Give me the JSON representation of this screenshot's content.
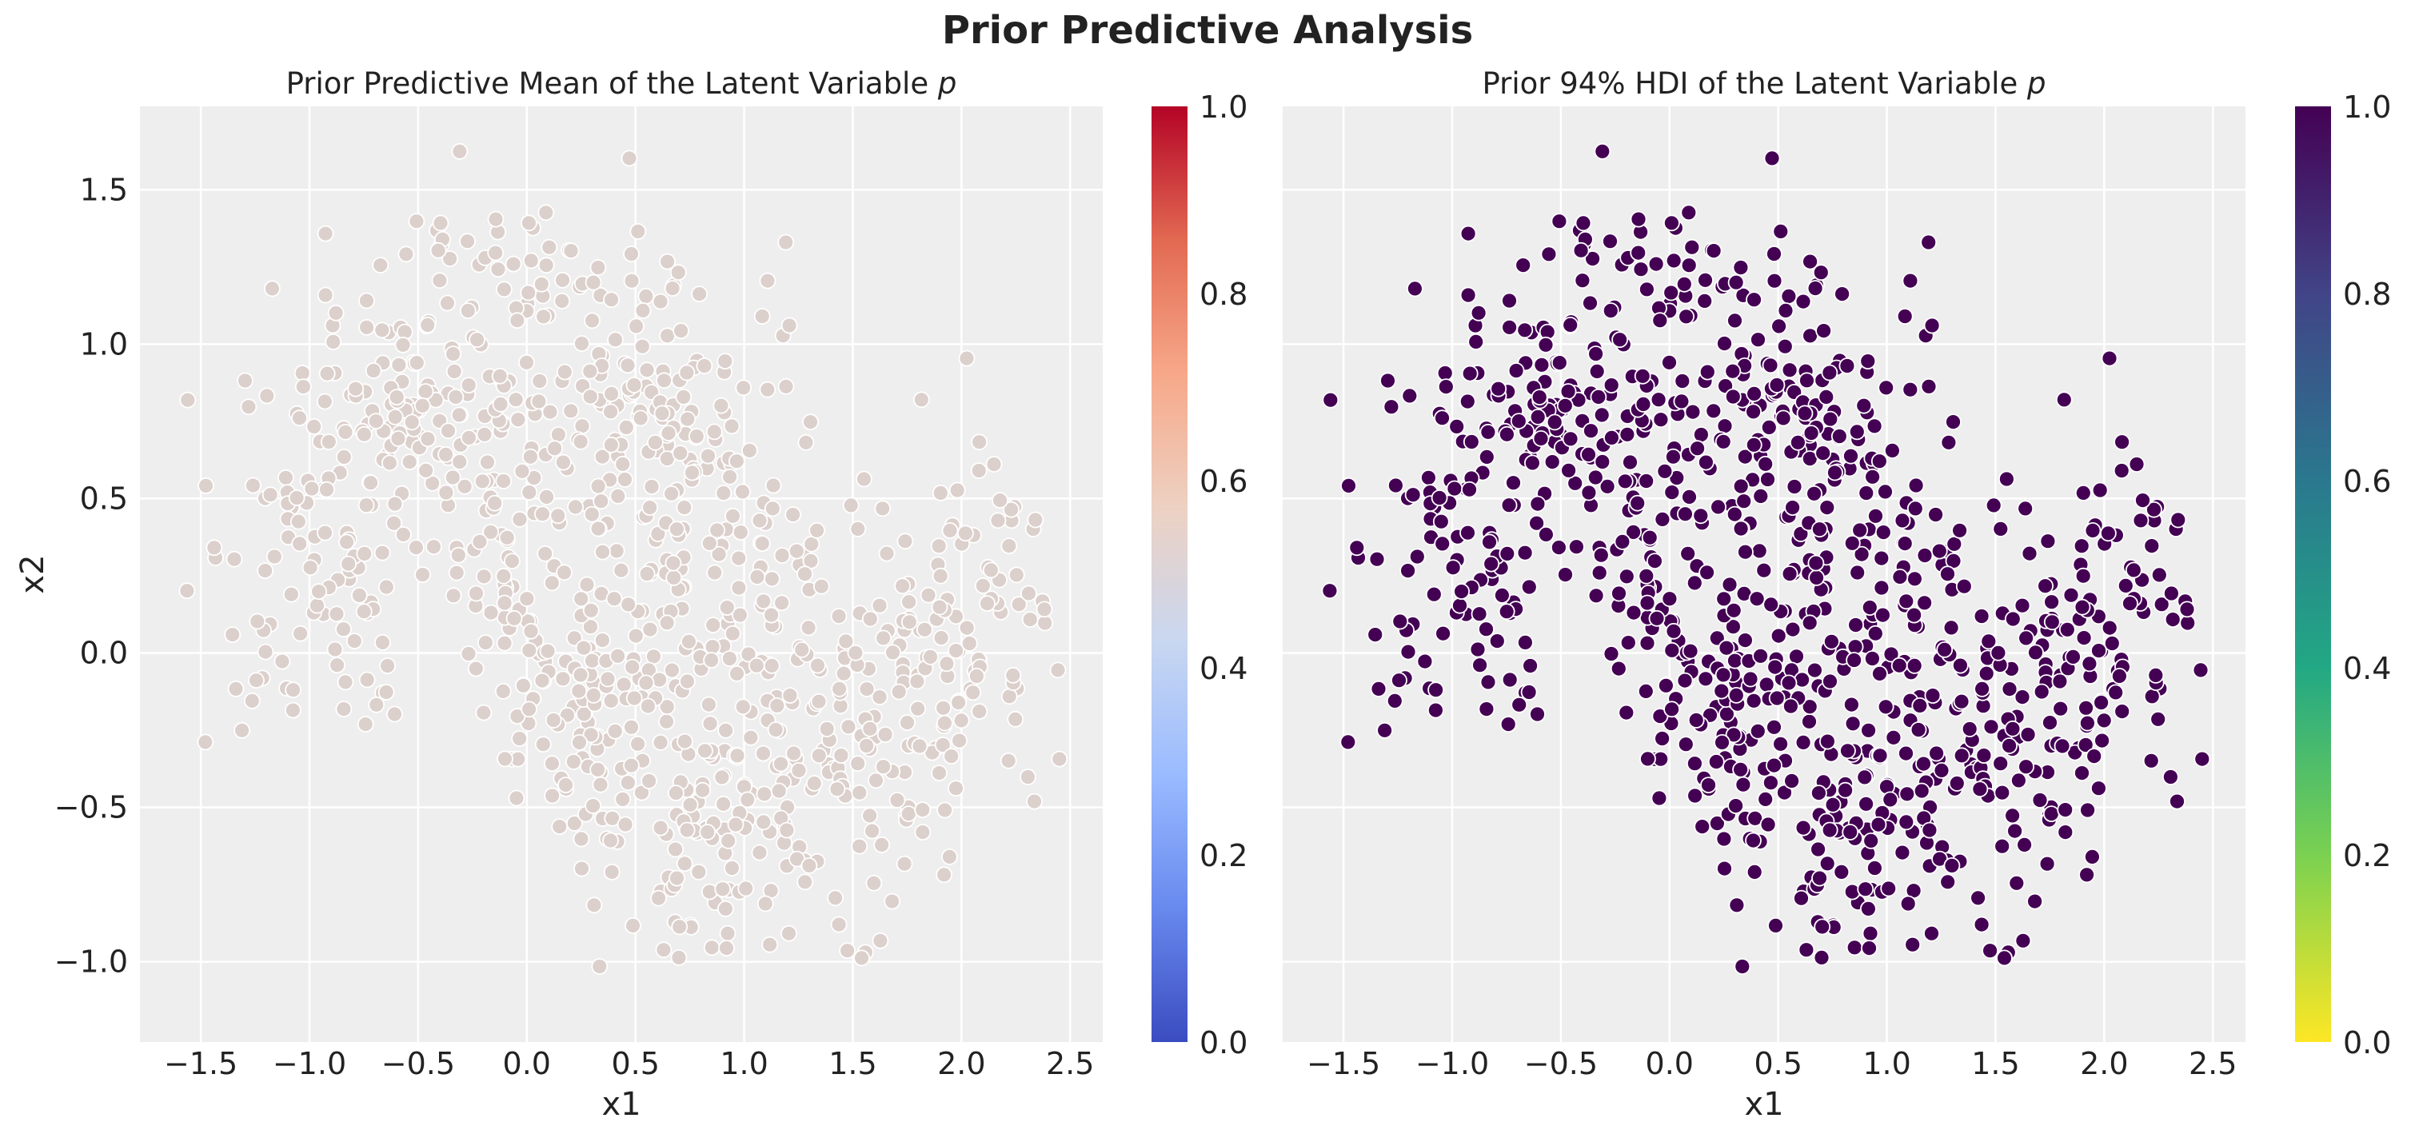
{
  "title": "Prior Predictive Analysis",
  "chart_data": [
    {
      "type": "scatter",
      "title": "Prior Predictive Mean of the Latent Variable",
      "title_symbol": "p",
      "xlabel": "x1",
      "ylabel": "x2",
      "xlim": [
        -1.78,
        2.65
      ],
      "ylim": [
        -1.26,
        1.77
      ],
      "xticks": [
        -1.5,
        -1.0,
        -0.5,
        0.0,
        0.5,
        1.0,
        1.5,
        2.0,
        2.5
      ],
      "yticks": [
        -1.0,
        -0.5,
        0.0,
        0.5,
        1.0,
        1.5
      ],
      "point_color": "#dcd0cc",
      "colorbar": {
        "colormap": "coolwarm",
        "range": [
          0.0,
          1.0
        ],
        "ticks": [
          0.0,
          0.2,
          0.4,
          0.6,
          0.8,
          1.0
        ],
        "colors": [
          "#3b4cc0",
          "#6889ee",
          "#9abbff",
          "#c9d7f0",
          "#edd1c2",
          "#f7a889",
          "#e26952",
          "#b40426"
        ]
      },
      "grid": true,
      "facecolor": "#eeeeee",
      "n_points": 1000
    },
    {
      "type": "scatter",
      "title": "Prior 94% HDI of the Latent Variable",
      "title_symbol": "p",
      "xlabel": "x1",
      "ylabel": "",
      "xlim": [
        -1.78,
        2.65
      ],
      "ylim": [
        -1.26,
        1.77
      ],
      "xticks": [
        -1.5,
        -1.0,
        -0.5,
        0.0,
        0.5,
        1.0,
        1.5,
        2.0,
        2.5
      ],
      "yticks": [
        -1.0,
        -0.5,
        0.0,
        0.5,
        1.0,
        1.5
      ],
      "point_color": "#440154",
      "colorbar": {
        "colormap": "viridis_r",
        "range": [
          0.0,
          1.0
        ],
        "ticks": [
          0.0,
          0.2,
          0.4,
          0.6,
          0.8,
          1.0
        ],
        "colors": [
          "#fde725",
          "#7ad151",
          "#22a884",
          "#2a788e",
          "#414487",
          "#440154"
        ]
      },
      "grid": true,
      "facecolor": "#eeeeee",
      "n_points": 1000
    }
  ]
}
